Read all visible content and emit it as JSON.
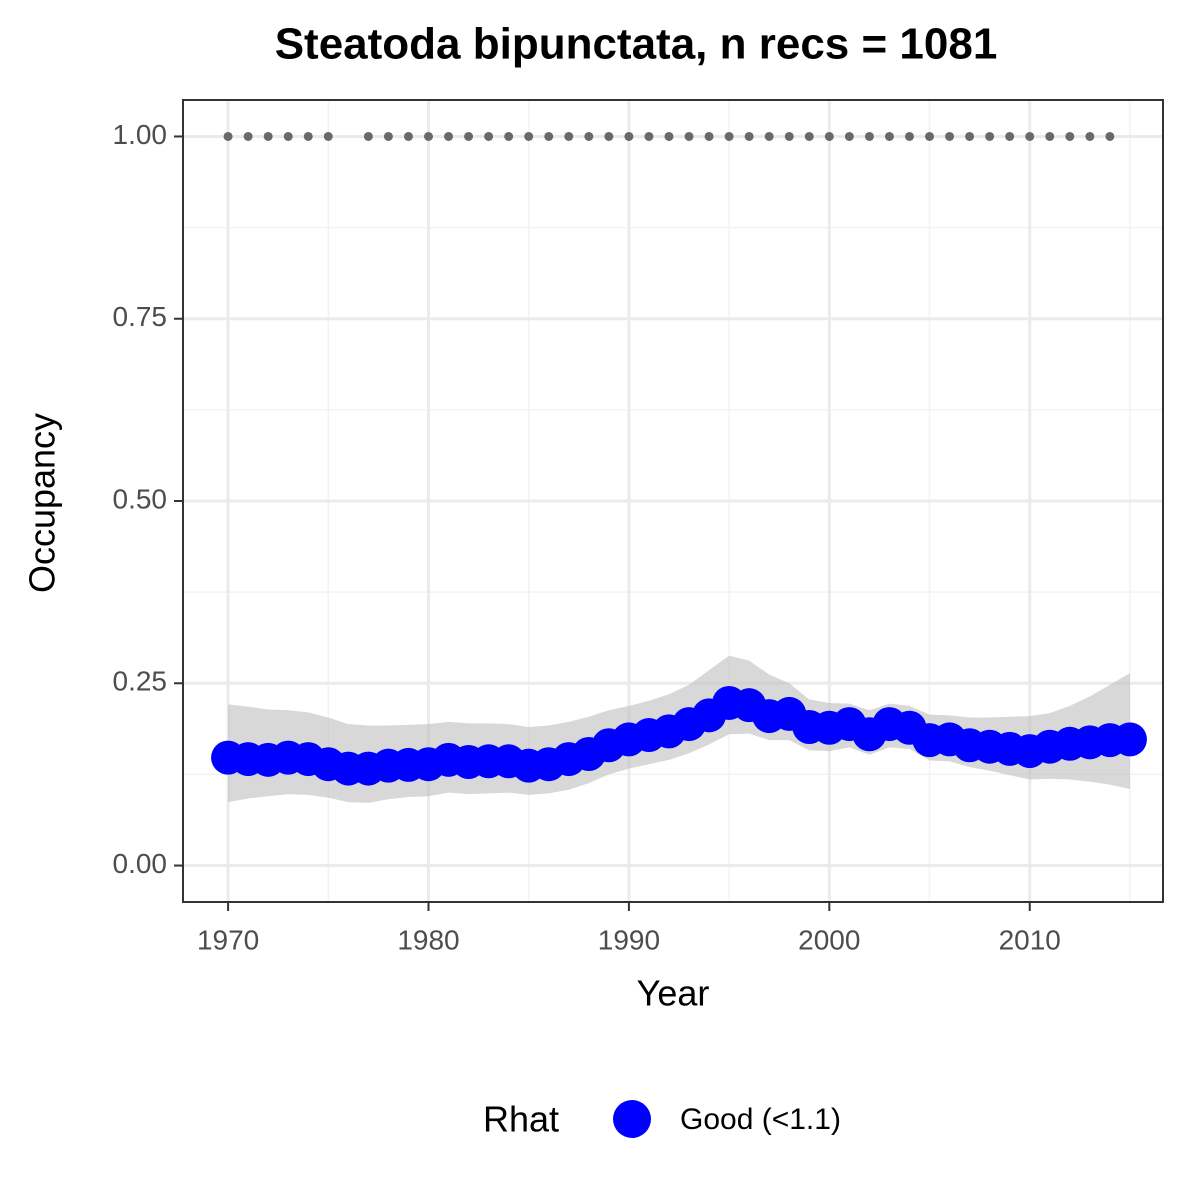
{
  "chart_data": {
    "type": "line",
    "title": "Steatoda bipunctata, n recs = 1081",
    "x_label": "Year",
    "y_label": "Occupancy",
    "x": [
      1970,
      1971,
      1972,
      1973,
      1974,
      1975,
      1976,
      1977,
      1978,
      1979,
      1980,
      1981,
      1982,
      1983,
      1984,
      1985,
      1986,
      1987,
      1988,
      1989,
      1990,
      1991,
      1992,
      1993,
      1994,
      1995,
      1996,
      1997,
      1998,
      1999,
      2000,
      2001,
      2002,
      2003,
      2004,
      2005,
      2006,
      2007,
      2008,
      2009,
      2010,
      2011,
      2012,
      2013,
      2014,
      2015
    ],
    "series": [
      {
        "name": "Good (<1.1)",
        "color": "#0000ff",
        "values": [
          0.148,
          0.146,
          0.145,
          0.148,
          0.146,
          0.139,
          0.133,
          0.133,
          0.137,
          0.138,
          0.139,
          0.145,
          0.142,
          0.143,
          0.143,
          0.137,
          0.139,
          0.146,
          0.153,
          0.165,
          0.173,
          0.179,
          0.184,
          0.194,
          0.206,
          0.223,
          0.22,
          0.205,
          0.208,
          0.19,
          0.189,
          0.194,
          0.18,
          0.194,
          0.189,
          0.172,
          0.173,
          0.165,
          0.163,
          0.16,
          0.157,
          0.163,
          0.167,
          0.169,
          0.172,
          0.173
        ]
      }
    ],
    "band": {
      "color": "#bebebe",
      "upper": [
        0.221,
        0.218,
        0.214,
        0.213,
        0.21,
        0.203,
        0.194,
        0.192,
        0.192,
        0.193,
        0.194,
        0.197,
        0.195,
        0.195,
        0.194,
        0.19,
        0.192,
        0.197,
        0.204,
        0.213,
        0.219,
        0.226,
        0.235,
        0.248,
        0.268,
        0.288,
        0.281,
        0.262,
        0.25,
        0.228,
        0.223,
        0.222,
        0.213,
        0.222,
        0.219,
        0.207,
        0.206,
        0.203,
        0.203,
        0.204,
        0.205,
        0.209,
        0.219,
        0.232,
        0.248,
        0.264
      ],
      "lower": [
        0.087,
        0.092,
        0.095,
        0.098,
        0.097,
        0.093,
        0.087,
        0.086,
        0.091,
        0.094,
        0.095,
        0.1,
        0.098,
        0.099,
        0.1,
        0.097,
        0.099,
        0.104,
        0.113,
        0.125,
        0.133,
        0.139,
        0.145,
        0.154,
        0.166,
        0.18,
        0.181,
        0.172,
        0.172,
        0.158,
        0.157,
        0.162,
        0.152,
        0.162,
        0.16,
        0.144,
        0.143,
        0.135,
        0.13,
        0.124,
        0.118,
        0.119,
        0.118,
        0.115,
        0.111,
        0.105
      ]
    },
    "records": {
      "color": "#696969",
      "x": [
        1970,
        1971,
        1972,
        1973,
        1974,
        1975,
        1977,
        1978,
        1979,
        1980,
        1981,
        1982,
        1983,
        1984,
        1985,
        1986,
        1987,
        1988,
        1989,
        1990,
        1991,
        1992,
        1993,
        1994,
        1995,
        1996,
        1997,
        1998,
        1999,
        2000,
        2001,
        2002,
        2003,
        2004,
        2005,
        2006,
        2007,
        2008,
        2009,
        2010,
        2011,
        2012,
        2013,
        2014
      ],
      "values": [
        1,
        1,
        1,
        1,
        1,
        1,
        1,
        1,
        1,
        1,
        1,
        1,
        1,
        1,
        1,
        1,
        1,
        1,
        1,
        1,
        1,
        1,
        1,
        1,
        1,
        1,
        1,
        1,
        1,
        1,
        1,
        1,
        1,
        1,
        1,
        1,
        1,
        1,
        1,
        1,
        1,
        1,
        1,
        1
      ]
    },
    "legend_title": "Rhat",
    "legend_position": "bottom",
    "xlim": [
      1967.75,
      2016.65
    ],
    "ylim": [
      -0.05,
      1.05
    ],
    "xticks": [
      1970,
      1980,
      1990,
      2000,
      2010
    ],
    "xminor": [
      1975,
      1985,
      1995,
      2005,
      2015
    ],
    "yticks": [
      {
        "value": 0,
        "label": "0.00"
      },
      0.25,
      {
        "value": 0.5,
        "label": "0.50"
      },
      0.75,
      {
        "value": 1,
        "label": "1.00"
      }
    ],
    "yminor": [
      0.125,
      0.375,
      0.625,
      0.875
    ],
    "grid": true
  }
}
